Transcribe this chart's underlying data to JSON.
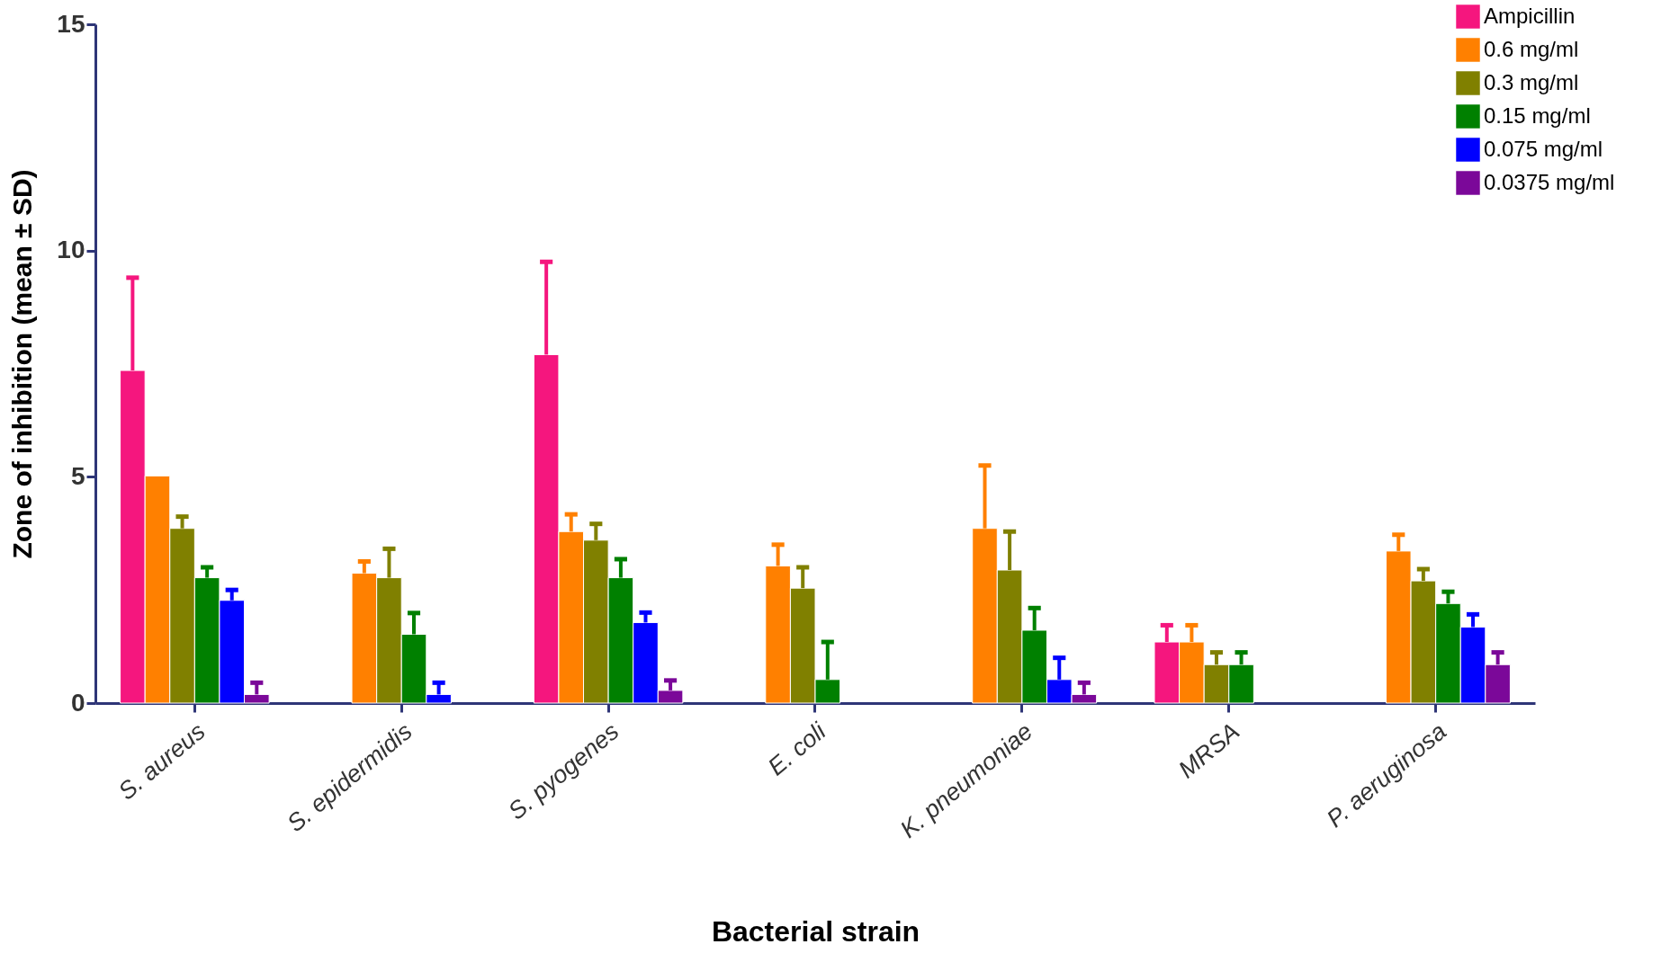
{
  "chart_data": {
    "type": "bar",
    "xlabel": "Bacterial strain",
    "ylabel": "Zone of inhibition (mean ± SD)",
    "categories": [
      "S. aureus",
      "S. epidermidis",
      "S. pyogenes",
      "E. coli",
      "K. pneumoniae",
      "MRSA",
      "P. aeruginosa"
    ],
    "ylim": [
      0,
      15
    ],
    "yticks": [
      0,
      5,
      10,
      15
    ],
    "grid": false,
    "legend": "top right",
    "series": [
      {
        "name": "Ampicillin",
        "color": "#f5167e",
        "values": [
          7.35,
          null,
          7.7,
          null,
          null,
          1.35,
          null
        ],
        "errors": [
          [
            7.35,
            9.4
          ],
          null,
          [
            7.7,
            9.75
          ],
          null,
          null,
          [
            1.35,
            1.72
          ],
          null
        ]
      },
      {
        "name": "0.6 mg/ml",
        "color": "#ff8000",
        "values": [
          5.02,
          2.87,
          3.79,
          3.03,
          3.86,
          1.35,
          3.36
        ],
        "errors": [
          null,
          [
            2.87,
            3.13
          ],
          [
            3.79,
            4.17
          ],
          [
            3.03,
            3.5
          ],
          [
            3.86,
            5.25
          ],
          [
            1.35,
            1.72
          ],
          [
            3.36,
            3.72
          ]
        ]
      },
      {
        "name": "0.3 mg/ml",
        "color": "#808000",
        "values": [
          3.86,
          2.77,
          3.6,
          2.54,
          2.94,
          0.85,
          2.7
        ],
        "errors": [
          [
            3.86,
            4.12
          ],
          [
            2.77,
            3.41
          ],
          [
            3.6,
            3.96
          ],
          [
            2.54,
            3.0
          ],
          [
            2.94,
            3.79
          ],
          [
            0.85,
            1.12
          ],
          [
            2.7,
            2.96
          ]
        ]
      },
      {
        "name": "0.15 mg/ml",
        "color": "#008000",
        "values": [
          2.77,
          1.52,
          2.77,
          0.52,
          1.61,
          0.85,
          2.2
        ],
        "errors": [
          [
            2.77,
            3.0
          ],
          [
            1.52,
            1.99
          ],
          [
            2.77,
            3.18
          ],
          [
            0.52,
            1.35
          ],
          [
            1.61,
            2.1
          ],
          [
            0.85,
            1.12
          ],
          [
            2.2,
            2.46
          ]
        ]
      },
      {
        "name": "0.075 mg/ml",
        "color": "#0000ff",
        "values": [
          2.27,
          0.19,
          1.78,
          null,
          0.52,
          null,
          1.68
        ],
        "errors": [
          [
            2.27,
            2.5
          ],
          [
            0.19,
            0.45
          ],
          [
            1.78,
            2.0
          ],
          null,
          [
            0.52,
            1.0
          ],
          null,
          [
            1.68,
            1.96
          ]
        ]
      },
      {
        "name": "0.0375 mg/ml",
        "color": "#7b0899",
        "values": [
          0.19,
          null,
          0.28,
          null,
          0.19,
          null,
          0.85
        ],
        "errors": [
          [
            0.19,
            0.45
          ],
          null,
          [
            0.28,
            0.5
          ],
          null,
          [
            0.19,
            0.45
          ],
          null,
          [
            0.85,
            1.12
          ]
        ]
      }
    ]
  }
}
